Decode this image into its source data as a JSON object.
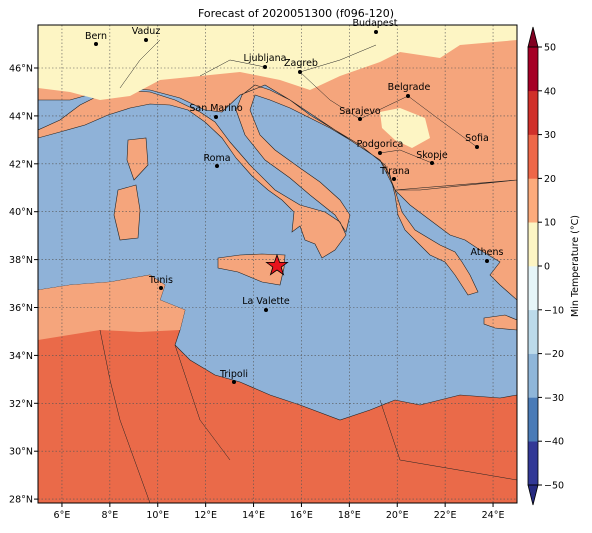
{
  "title": "Forecast of 2020051300 (f096-120)",
  "lon_ticks": [
    {
      "value": 6,
      "label": "6°E"
    },
    {
      "value": 8,
      "label": "8°E"
    },
    {
      "value": 10,
      "label": "10°E"
    },
    {
      "value": 12,
      "label": "12°E"
    },
    {
      "value": 14,
      "label": "14°E"
    },
    {
      "value": 16,
      "label": "16°E"
    },
    {
      "value": 18,
      "label": "18°E"
    },
    {
      "value": 20,
      "label": "20°E"
    },
    {
      "value": 22,
      "label": "22°E"
    },
    {
      "value": 24,
      "label": "24°E"
    }
  ],
  "lat_ticks": [
    {
      "value": 28,
      "label": "28°N"
    },
    {
      "value": 30,
      "label": "30°N"
    },
    {
      "value": 32,
      "label": "32°N"
    },
    {
      "value": 34,
      "label": "34°N"
    },
    {
      "value": 36,
      "label": "36°N"
    },
    {
      "value": 38,
      "label": "38°N"
    },
    {
      "value": 40,
      "label": "40°N"
    },
    {
      "value": 42,
      "label": "42°N"
    },
    {
      "value": 44,
      "label": "44°N"
    },
    {
      "value": 46,
      "label": "46°N"
    }
  ],
  "cities": [
    "Bern",
    "Vaduz",
    "Budapest",
    "Ljubljana",
    "Zagreb",
    "Belgrade",
    "San Marino",
    "Sarajevo",
    "Sofia",
    "Podgorica",
    "Skopje",
    "Roma",
    "Tirana",
    "Athens",
    "Tunis",
    "La Valette",
    "Tripoli"
  ],
  "colorbar": {
    "label": "Min Temperature (°C)",
    "lim": [
      -50,
      50
    ],
    "ticks": [
      {
        "value": -50,
        "label": "−50"
      },
      {
        "value": -40,
        "label": "−40"
      },
      {
        "value": -30,
        "label": "−30"
      },
      {
        "value": -20,
        "label": "−20"
      },
      {
        "value": -10,
        "label": "−10"
      },
      0,
      10,
      20,
      30,
      40,
      50
    ],
    "colors": [
      "#323896",
      "#4a7bb7",
      "#8fb6d9",
      "#bcdaea",
      "#e6f5f8",
      "#fdf5c4",
      "#fcab7c",
      "#ee6748",
      "#d0302a",
      "#a50026"
    ],
    "under_color": "#262a80",
    "over_color": "#800020"
  }
}
